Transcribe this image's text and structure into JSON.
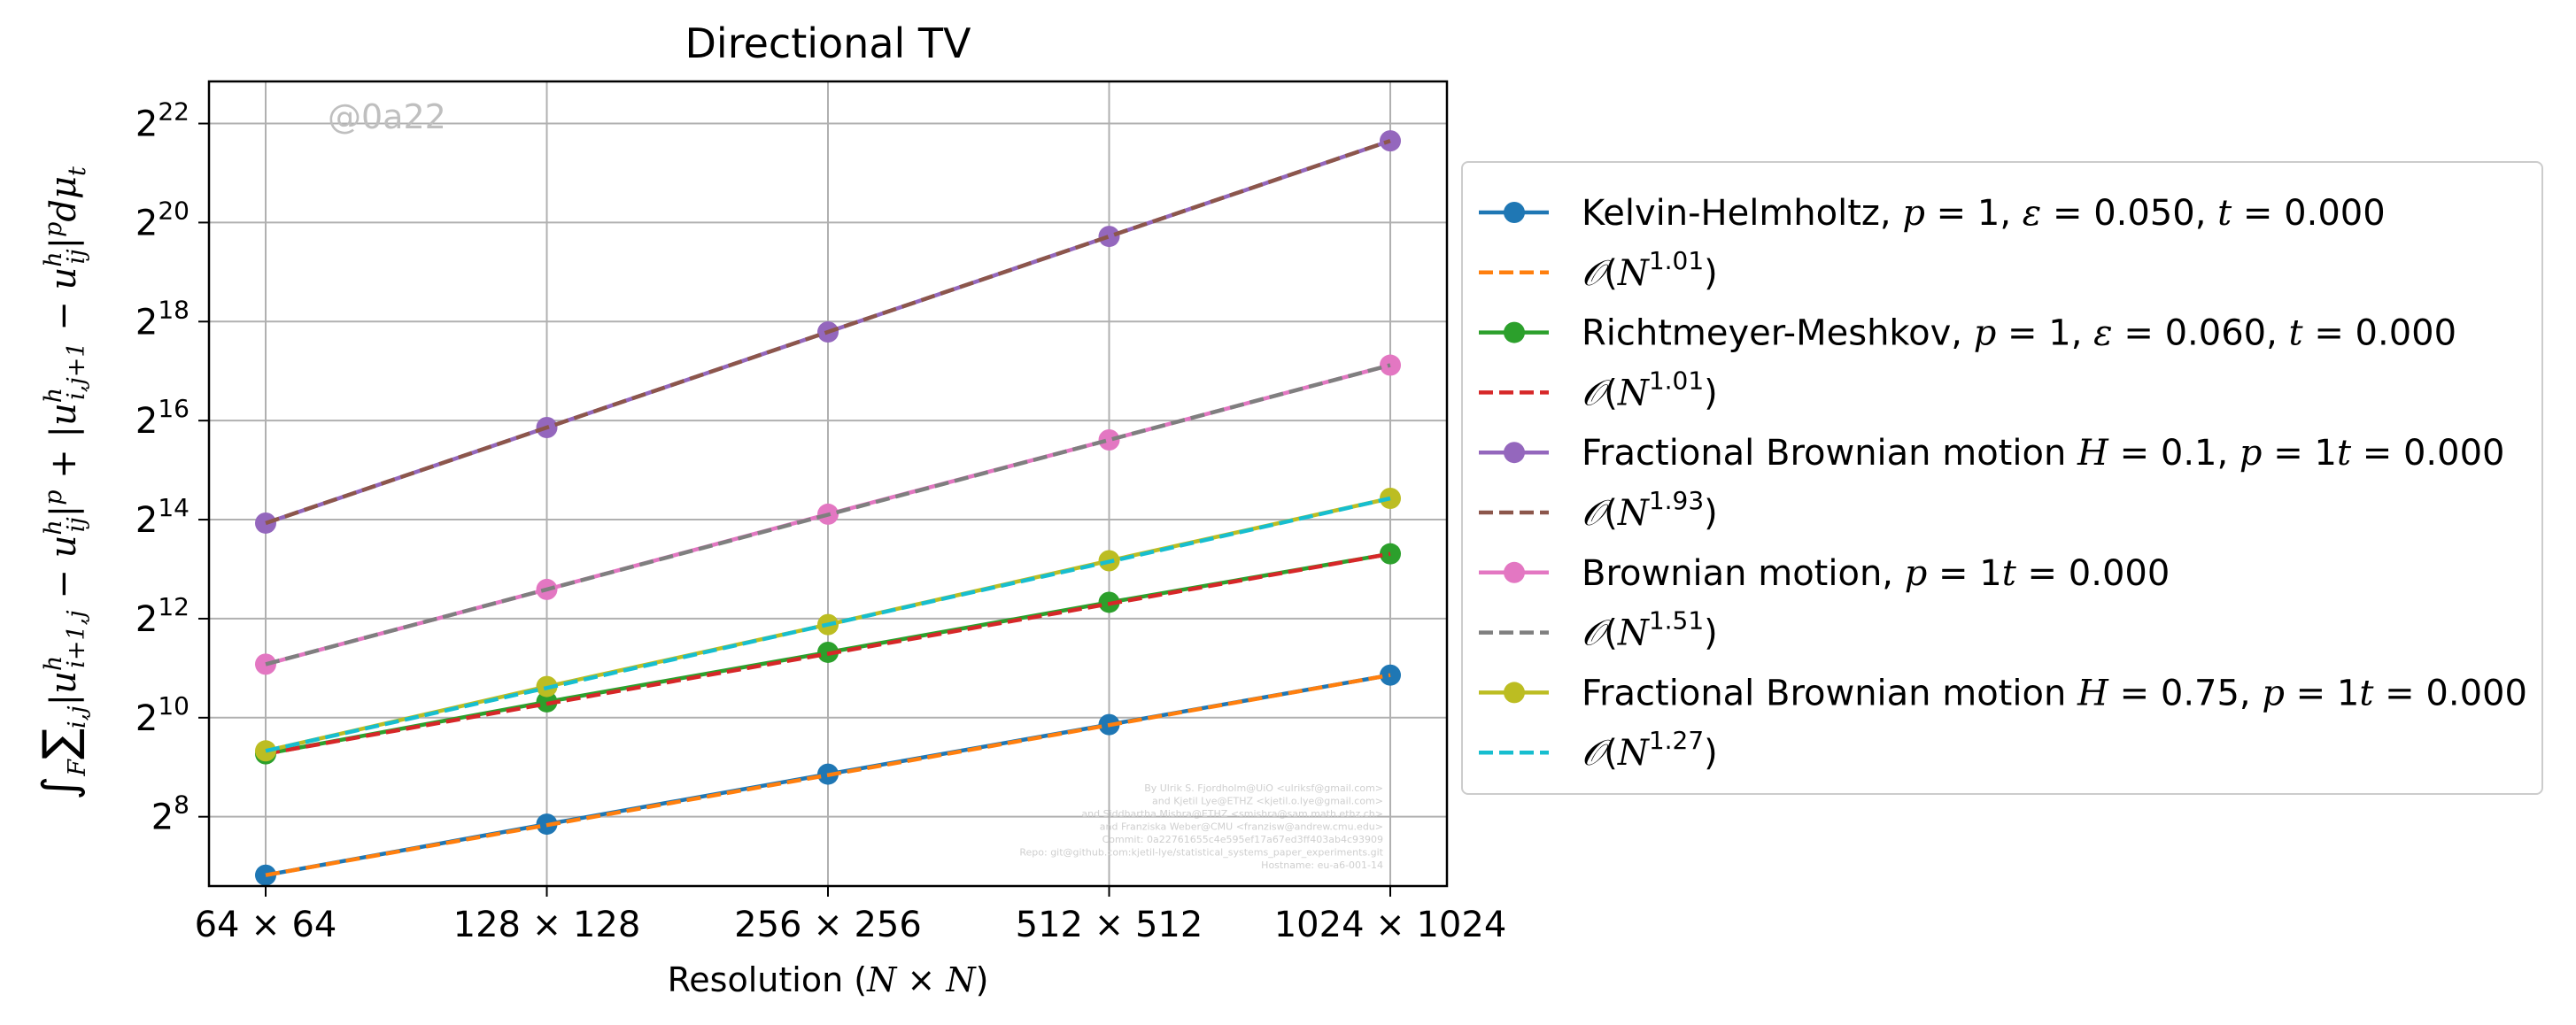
{
  "chart_data": {
    "type": "line",
    "title": "Directional TV",
    "xlabel": "Resolution (N × N)",
    "ylabel": "∫_F ∑_{i,j} |u^h_{i+1,j} − u^h_{ij}|^p + |u^h_{i,j+1} − u^h_{ij}|^p dμ_t",
    "x_scale": "log2",
    "y_scale": "log2",
    "categories": [
      "64 × 64",
      "128 × 128",
      "256 × 256",
      "512 × 512",
      "1024 × 1024"
    ],
    "x": [
      64,
      128,
      256,
      512,
      1024
    ],
    "ylim_exponent": [
      6.6,
      22.85
    ],
    "yticks_exponent": [
      8,
      10,
      12,
      14,
      16,
      18,
      20,
      22
    ],
    "grid": true,
    "legend_position": "outside-right",
    "watermark": "@0a22",
    "footer_lines": [
      "By Ulrik S. Fjordholm@UiO <ulriksf@gmail.com>",
      "and Kjetil Lye@ETHZ <kjetil.o.lye@gmail.com>",
      "and Siddhartha Mishra@ETHZ <smishra@sam.math.ethz.ch>",
      "and Franziska Weber@CMU <franzisw@andrew.cmu.edu>",
      "Commit: 0a22761655c4e595ef17a67ed3ff403ab4c93909",
      "Repo: git@github.com:kjetil-lye/statistical_systems_paper_experiments.git",
      "Hostname: eu-a6-001-14"
    ],
    "series": [
      {
        "name": "Kelvin-Helmholtz, p = 1, ε = 0.050, t = 0.000",
        "style": "solid-marker",
        "color": "#1f77b4",
        "y_exponent": [
          6.82,
          7.85,
          8.86,
          9.86,
          10.86
        ]
      },
      {
        "name": "𝒪(N^1.01)",
        "style": "dashed",
        "color": "#ff7f0e",
        "y_exponent": [
          6.82,
          7.83,
          8.84,
          9.85,
          10.86
        ]
      },
      {
        "name": "Richtmeyer-Meshkov, p = 1, ε = 0.060, t = 0.000",
        "style": "solid-marker",
        "color": "#2ca02c",
        "y_exponent": [
          9.27,
          10.32,
          11.32,
          12.33,
          13.31
        ]
      },
      {
        "name": "𝒪(N^1.01)",
        "style": "dashed",
        "color": "#d62728",
        "y_exponent": [
          9.27,
          10.28,
          11.29,
          12.3,
          13.31
        ]
      },
      {
        "name": "Fractional Brownian motion H = 0.1, p = 1t = 0.000",
        "style": "solid-marker",
        "color": "#9467bd",
        "y_exponent": [
          13.93,
          15.86,
          17.79,
          19.72,
          21.65
        ]
      },
      {
        "name": "𝒪(N^1.93)",
        "style": "dashed",
        "color": "#8c564b",
        "y_exponent": [
          13.93,
          15.86,
          17.79,
          19.72,
          21.65
        ]
      },
      {
        "name": "Brownian motion, p = 1t = 0.000",
        "style": "solid-marker",
        "color": "#e377c2",
        "y_exponent": [
          11.08,
          12.59,
          14.11,
          15.61,
          17.12
        ]
      },
      {
        "name": "𝒪(N^1.51)",
        "style": "dashed",
        "color": "#7f7f7f",
        "y_exponent": [
          11.08,
          12.59,
          14.1,
          15.61,
          17.12
        ]
      },
      {
        "name": "Fractional Brownian motion H = 0.75, p = 1t = 0.000",
        "style": "solid-marker",
        "color": "#bcbd22",
        "y_exponent": [
          9.33,
          10.63,
          11.88,
          13.17,
          14.43
        ]
      },
      {
        "name": "𝒪(N^1.27)",
        "style": "dashed",
        "color": "#17becf",
        "y_exponent": [
          9.33,
          10.6,
          11.88,
          13.15,
          14.43
        ]
      }
    ]
  }
}
